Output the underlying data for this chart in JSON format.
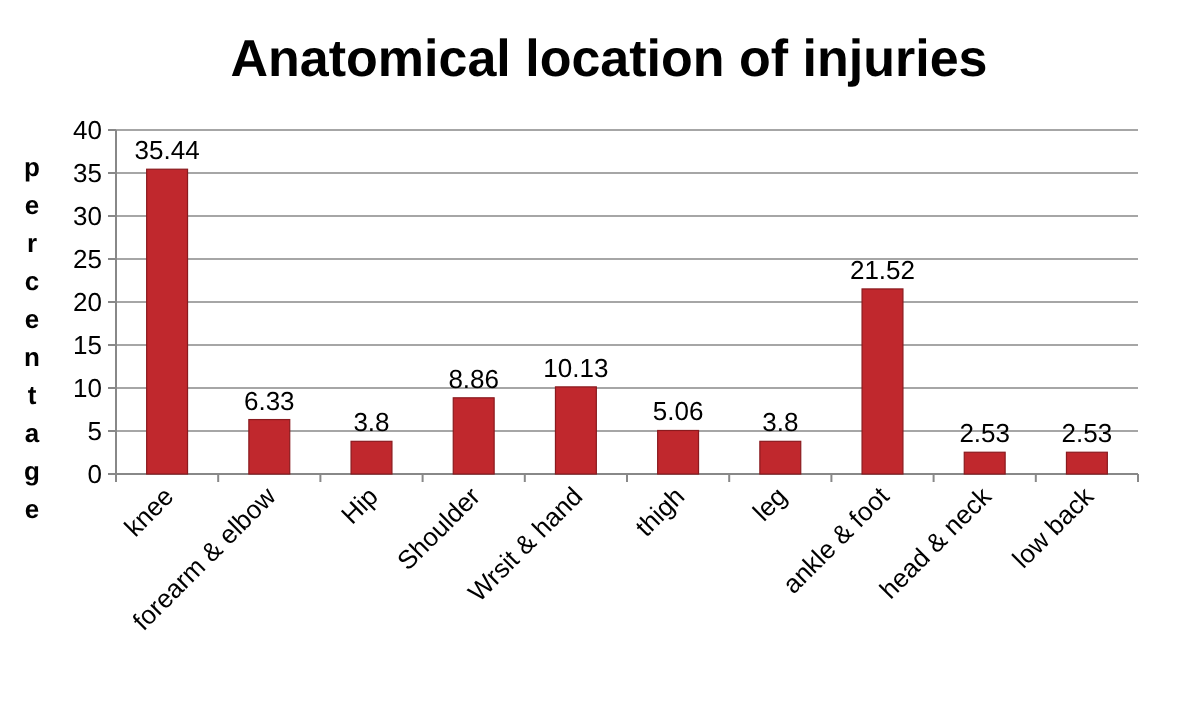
{
  "chart_data": {
    "type": "bar",
    "title": "Anatomical location of injuries",
    "ylabel": "percentage",
    "categories": [
      "knee",
      "forearm & elbow",
      "Hip",
      "Shoulder",
      "Wrsit & hand",
      "thigh",
      "leg",
      "ankle & foot",
      "head & neck",
      "low back"
    ],
    "values": [
      35.44,
      6.33,
      3.8,
      8.86,
      10.13,
      5.06,
      3.8,
      21.52,
      2.53,
      2.53
    ],
    "color": "#c0282d",
    "ylim": [
      0,
      40
    ],
    "yticks": [
      0,
      5,
      10,
      15,
      20,
      25,
      30,
      35,
      40
    ],
    "grid": "y",
    "data_labels": true
  }
}
